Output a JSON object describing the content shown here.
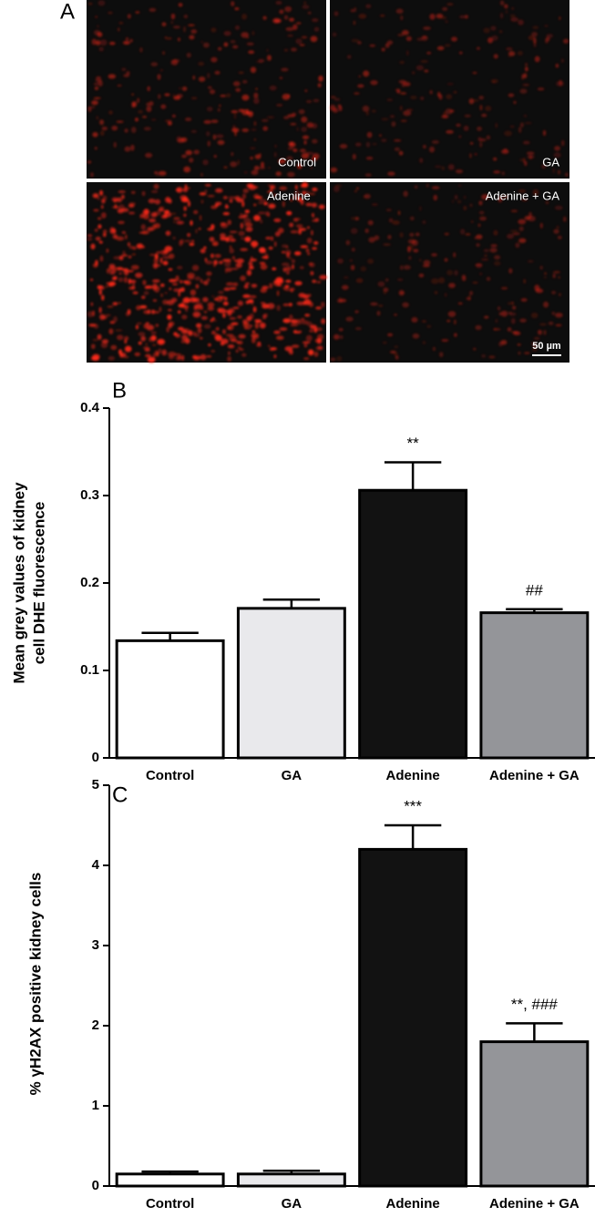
{
  "panel_a": {
    "panel_label": "A",
    "labels": [
      "Control",
      "GA",
      "Adenine",
      "Adenine + GA"
    ],
    "scale_bar": "50 µm"
  },
  "chart_data": [
    {
      "type": "bar",
      "panel_label": "B",
      "ylabel": [
        "Mean grey values of kidney",
        "cell DHE fluorescence"
      ],
      "categories": [
        "Control",
        "GA",
        "Adenine",
        "Adenine + GA"
      ],
      "values": [
        0.134,
        0.171,
        0.306,
        0.166
      ],
      "errors": [
        0.009,
        0.01,
        0.032,
        0.004
      ],
      "colors": [
        "#ffffff",
        "#e9e9ec",
        "#121212",
        "#949599"
      ],
      "annotations": [
        null,
        null,
        "**",
        "##"
      ],
      "ylim": [
        0,
        0.4
      ],
      "yticks": [
        0,
        0.1,
        0.2,
        0.3,
        0.4
      ]
    },
    {
      "type": "bar",
      "panel_label": "C",
      "ylabel": [
        "% γH2AX positive kidney cells"
      ],
      "categories": [
        "Control",
        "GA",
        "Adenine",
        "Adenine + GA"
      ],
      "values": [
        0.15,
        0.15,
        4.2,
        1.8
      ],
      "errors": [
        0.03,
        0.04,
        0.3,
        0.23
      ],
      "colors": [
        "#ffffff",
        "#e9e9ec",
        "#121212",
        "#949599"
      ],
      "annotations": [
        null,
        null,
        "***",
        "**, ###"
      ],
      "ylim": [
        0,
        5
      ],
      "yticks": [
        0,
        1,
        2,
        3,
        4,
        5
      ]
    }
  ]
}
